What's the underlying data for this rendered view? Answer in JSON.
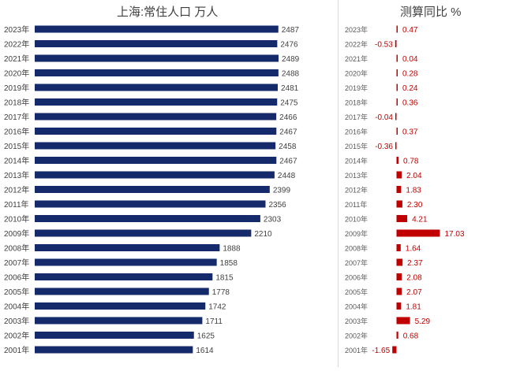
{
  "chart_data": [
    {
      "type": "bar",
      "orientation": "horizontal",
      "title": "上海:常住人口 万人",
      "categories": [
        "2023年",
        "2022年",
        "2021年",
        "2020年",
        "2019年",
        "2018年",
        "2017年",
        "2016年",
        "2015年",
        "2014年",
        "2013年",
        "2012年",
        "2011年",
        "2010年",
        "2009年",
        "2008年",
        "2007年",
        "2006年",
        "2005年",
        "2004年",
        "2003年",
        "2002年",
        "2001年"
      ],
      "values": [
        2487,
        2476,
        2489,
        2488,
        2481,
        2475,
        2466,
        2467,
        2458,
        2467,
        2448,
        2399,
        2356,
        2303,
        2210,
        1888,
        1858,
        1815,
        1778,
        1742,
        1711,
        1625,
        1614
      ],
      "data_labels": [
        "2487",
        "2476",
        "2489",
        "2488",
        "2481",
        "2475",
        "2466",
        "2467",
        "2458",
        "2467",
        "2448",
        "2399",
        "2356",
        "2303",
        "2210",
        "1888",
        "1858",
        "1815",
        "1778",
        "1742",
        "1711",
        "1625",
        "1614"
      ],
      "xlim": [
        0,
        2489
      ],
      "grid": false,
      "color": "#142a6b"
    },
    {
      "type": "bar",
      "orientation": "horizontal",
      "title": "测算同比 %",
      "categories": [
        "2023年",
        "2022年",
        "2021年",
        "2020年",
        "2019年",
        "2018年",
        "2017年",
        "2016年",
        "2015年",
        "2014年",
        "2013年",
        "2012年",
        "2011年",
        "2010年",
        "2009年",
        "2008年",
        "2007年",
        "2006年",
        "2005年",
        "2004年",
        "2003年",
        "2002年",
        "2001年"
      ],
      "values": [
        0.47,
        -0.53,
        0.04,
        0.28,
        0.24,
        0.36,
        -0.04,
        0.37,
        -0.36,
        0.78,
        2.04,
        1.83,
        2.3,
        4.21,
        17.03,
        1.64,
        2.37,
        2.08,
        2.07,
        1.81,
        5.29,
        0.68,
        -1.65
      ],
      "data_labels": [
        "0.47",
        "-0.53",
        "0.04",
        "0.28",
        "0.24",
        "0.36",
        "-0.04",
        "0.37",
        "-0.36",
        "0.78",
        "2.04",
        "1.83",
        "2.30",
        "4.21",
        "17.03",
        "1.64",
        "2.37",
        "2.08",
        "2.07",
        "1.81",
        "5.29",
        "0.68",
        "-1.65"
      ],
      "xlim": [
        -1.65,
        17.03
      ],
      "grid": false,
      "color": "#c00000"
    }
  ]
}
